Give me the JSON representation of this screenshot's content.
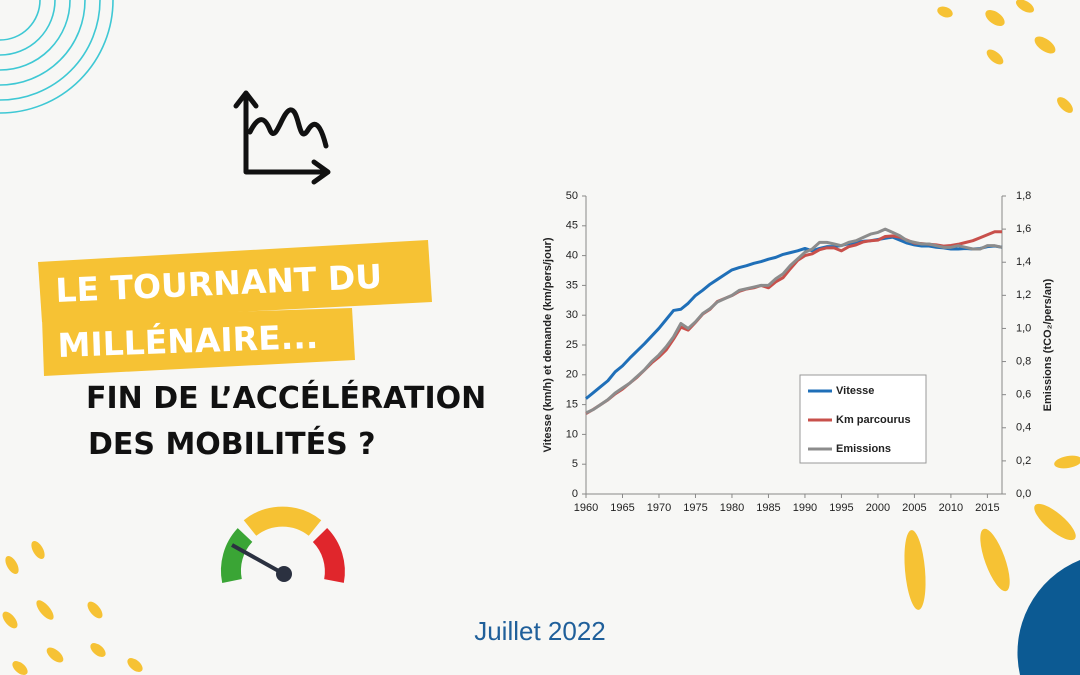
{
  "headline": {
    "box_lines": [
      "LE TOURNANT DU",
      "MILLÉNAIRE..."
    ],
    "lines": [
      "FIN DE L’ACCÉLÉRATION",
      "DES MOBILITÉS ?"
    ]
  },
  "date": "Juillet 2022",
  "chart_data": {
    "type": "line",
    "y_label": "Vitesse (km/h) et demande (km/pers/jour)",
    "y2_label": "Emissions (tCO₂/pers/an)",
    "x": [
      1960,
      1961,
      1962,
      1963,
      1964,
      1965,
      1966,
      1967,
      1968,
      1969,
      1970,
      1971,
      1972,
      1973,
      1974,
      1975,
      1976,
      1977,
      1978,
      1979,
      1980,
      1981,
      1982,
      1983,
      1984,
      1985,
      1986,
      1987,
      1988,
      1989,
      1990,
      1991,
      1992,
      1993,
      1994,
      1995,
      1996,
      1997,
      1998,
      1999,
      2000,
      2001,
      2002,
      2003,
      2004,
      2005,
      2006,
      2007,
      2008,
      2009,
      2010,
      2011,
      2012,
      2013,
      2014,
      2015,
      2016,
      2017
    ],
    "xlim": [
      1960,
      2017
    ],
    "xticks": [
      1960,
      1965,
      1970,
      1975,
      1980,
      1985,
      1990,
      1995,
      2000,
      2005,
      2010,
      2015
    ],
    "ylim": [
      0,
      50
    ],
    "yticks": [
      0,
      5,
      10,
      15,
      20,
      25,
      30,
      35,
      40,
      45,
      50
    ],
    "y2lim": [
      0,
      1.8
    ],
    "y2ticks": [
      {
        "value": 0,
        "label": "0,0"
      },
      {
        "value": 0.2,
        "label": "0,2"
      },
      {
        "value": 0.4,
        "label": "0,4"
      },
      {
        "value": 0.6,
        "label": "0,6"
      },
      {
        "value": 0.8,
        "label": "0,8"
      },
      {
        "value": 1.0,
        "label": "1,0"
      },
      {
        "value": 1.2,
        "label": "1,2"
      },
      {
        "value": 1.4,
        "label": "1,4"
      },
      {
        "value": 1.6,
        "label": "1,6"
      },
      {
        "value": 1.8,
        "label": "1,8"
      }
    ],
    "grid": false,
    "legend": "right",
    "series": [
      {
        "name": "Vitesse",
        "color": "#1f6fb8",
        "values": [
          16,
          17,
          18,
          19,
          20.5,
          21.5,
          22.8,
          24,
          25.2,
          26.5,
          27.8,
          29.3,
          30.8,
          31,
          32,
          33.3,
          34.2,
          35.2,
          36,
          36.8,
          37.6,
          38,
          38.3,
          38.7,
          39,
          39.4,
          39.7,
          40.2,
          40.5,
          40.8,
          41.2,
          40.8,
          41.2,
          41.5,
          41.5,
          41.7,
          42,
          42.2,
          42.4,
          42.5,
          42.7,
          42.9,
          43.1,
          42.6,
          42.1,
          41.8,
          41.6,
          41.6,
          41.4,
          41.3,
          41.1,
          41.1,
          41.2,
          41.1,
          41.2,
          41.5,
          41.6,
          41.4
        ]
      },
      {
        "name": "Km parcourus",
        "color": "#c8504b",
        "values": [
          13.5,
          14.2,
          15,
          15.8,
          16.8,
          17.6,
          18.6,
          19.6,
          20.8,
          22,
          23,
          24.2,
          26,
          28,
          27.5,
          28.8,
          30.2,
          31,
          32.3,
          32.8,
          33.3,
          34,
          34.4,
          34.6,
          35,
          34.6,
          35.6,
          36.3,
          37.8,
          39.2,
          40,
          40.3,
          41,
          41.3,
          41.3,
          40.8,
          41.5,
          41.8,
          42.3,
          42.5,
          42.6,
          43.2,
          43.3,
          43.1,
          42.6,
          42.1,
          42,
          41.9,
          41.8,
          41.6,
          41.7,
          41.9,
          42.2,
          42.5,
          43,
          43.5,
          44,
          44
        ]
      },
      {
        "name": "Emissions",
        "color": "#8c8c8c",
        "axis": "y2",
        "values": [
          0.49,
          0.51,
          0.54,
          0.57,
          0.61,
          0.64,
          0.67,
          0.71,
          0.75,
          0.8,
          0.84,
          0.89,
          0.95,
          1.03,
          1.0,
          1.04,
          1.09,
          1.12,
          1.16,
          1.18,
          1.2,
          1.23,
          1.24,
          1.25,
          1.26,
          1.26,
          1.3,
          1.33,
          1.38,
          1.42,
          1.46,
          1.48,
          1.52,
          1.52,
          1.51,
          1.5,
          1.52,
          1.53,
          1.55,
          1.57,
          1.58,
          1.6,
          1.58,
          1.56,
          1.53,
          1.52,
          1.51,
          1.51,
          1.5,
          1.49,
          1.49,
          1.5,
          1.49,
          1.48,
          1.48,
          1.5,
          1.5,
          1.49
        ]
      }
    ]
  }
}
